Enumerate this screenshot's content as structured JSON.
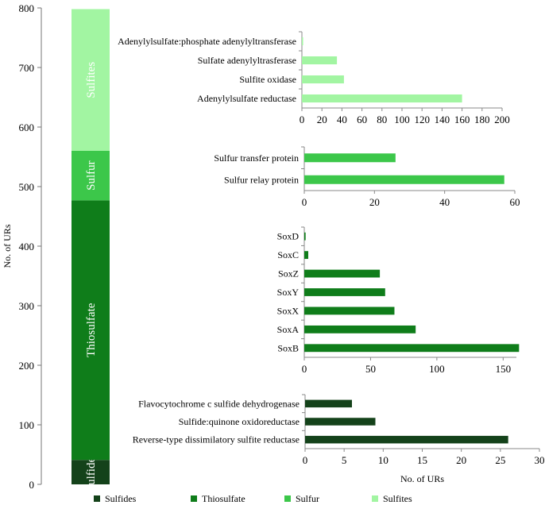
{
  "chart_data": {
    "type": "bar",
    "colors": {
      "Sulfides": "#14421a",
      "Thiosulfate": "#0f7d1a",
      "Sulfur": "#3cc74a",
      "Sulfites": "#a2f5a2"
    },
    "legend": {
      "position": "bottom",
      "entries": [
        "Sulfides",
        "Thiosulfate",
        "Sulfur",
        "Sulfites"
      ]
    },
    "stacked": {
      "type": "stacked-bar",
      "ylabel": "No. of URs",
      "ylim": [
        0,
        800
      ],
      "yticks": [
        0,
        100,
        200,
        300,
        400,
        500,
        600,
        700,
        800
      ],
      "segments": [
        {
          "name": "Sulfides",
          "value": 41
        },
        {
          "name": "Thiosulfate",
          "value": 436
        },
        {
          "name": "Sulfur",
          "value": 83
        },
        {
          "name": "Sulfites",
          "value": 238
        }
      ]
    },
    "panels": [
      {
        "id": "sulfites",
        "type": "barh",
        "series": "Sulfites",
        "xlim": [
          0,
          200
        ],
        "xticks": [
          0,
          20,
          40,
          60,
          80,
          100,
          120,
          140,
          160,
          180,
          200
        ],
        "categories": [
          "Adenylylsulfate:phosphate adenylyltransferase",
          "Sulfate adenylyltrasferase",
          "Sulfite oxidase",
          "Adenylylsulfate reductase"
        ],
        "values": [
          1,
          35,
          42,
          160
        ]
      },
      {
        "id": "sulfur",
        "type": "barh",
        "series": "Sulfur",
        "xlim": [
          0,
          60
        ],
        "xticks": [
          0,
          20,
          40,
          60
        ],
        "categories": [
          "Sulfur transfer protein",
          "Sulfur relay protein"
        ],
        "values": [
          26,
          57
        ]
      },
      {
        "id": "thiosulfate",
        "type": "barh",
        "series": "Thiosulfate",
        "xlim": [
          0,
          160
        ],
        "xticks": [
          0,
          50,
          100,
          150
        ],
        "categories": [
          "SoxD",
          "SoxC",
          "SoxZ",
          "SoxY",
          "SoxX",
          "SoxA",
          "SoxB"
        ],
        "values": [
          1,
          3,
          57,
          61,
          68,
          84,
          162
        ]
      },
      {
        "id": "sulfides",
        "type": "barh",
        "series": "Sulfides",
        "xlim": [
          0,
          30
        ],
        "xticks": [
          0,
          5,
          10,
          15,
          20,
          25,
          30
        ],
        "xlabel": "No. of  URs",
        "categories": [
          "Flavocytochrome c sulfide dehydrogenase",
          "Sulfide:quinone oxidoreductase",
          "Reverse-type dissimilatory sulfite reductase"
        ],
        "values": [
          6,
          9,
          26
        ]
      }
    ]
  }
}
